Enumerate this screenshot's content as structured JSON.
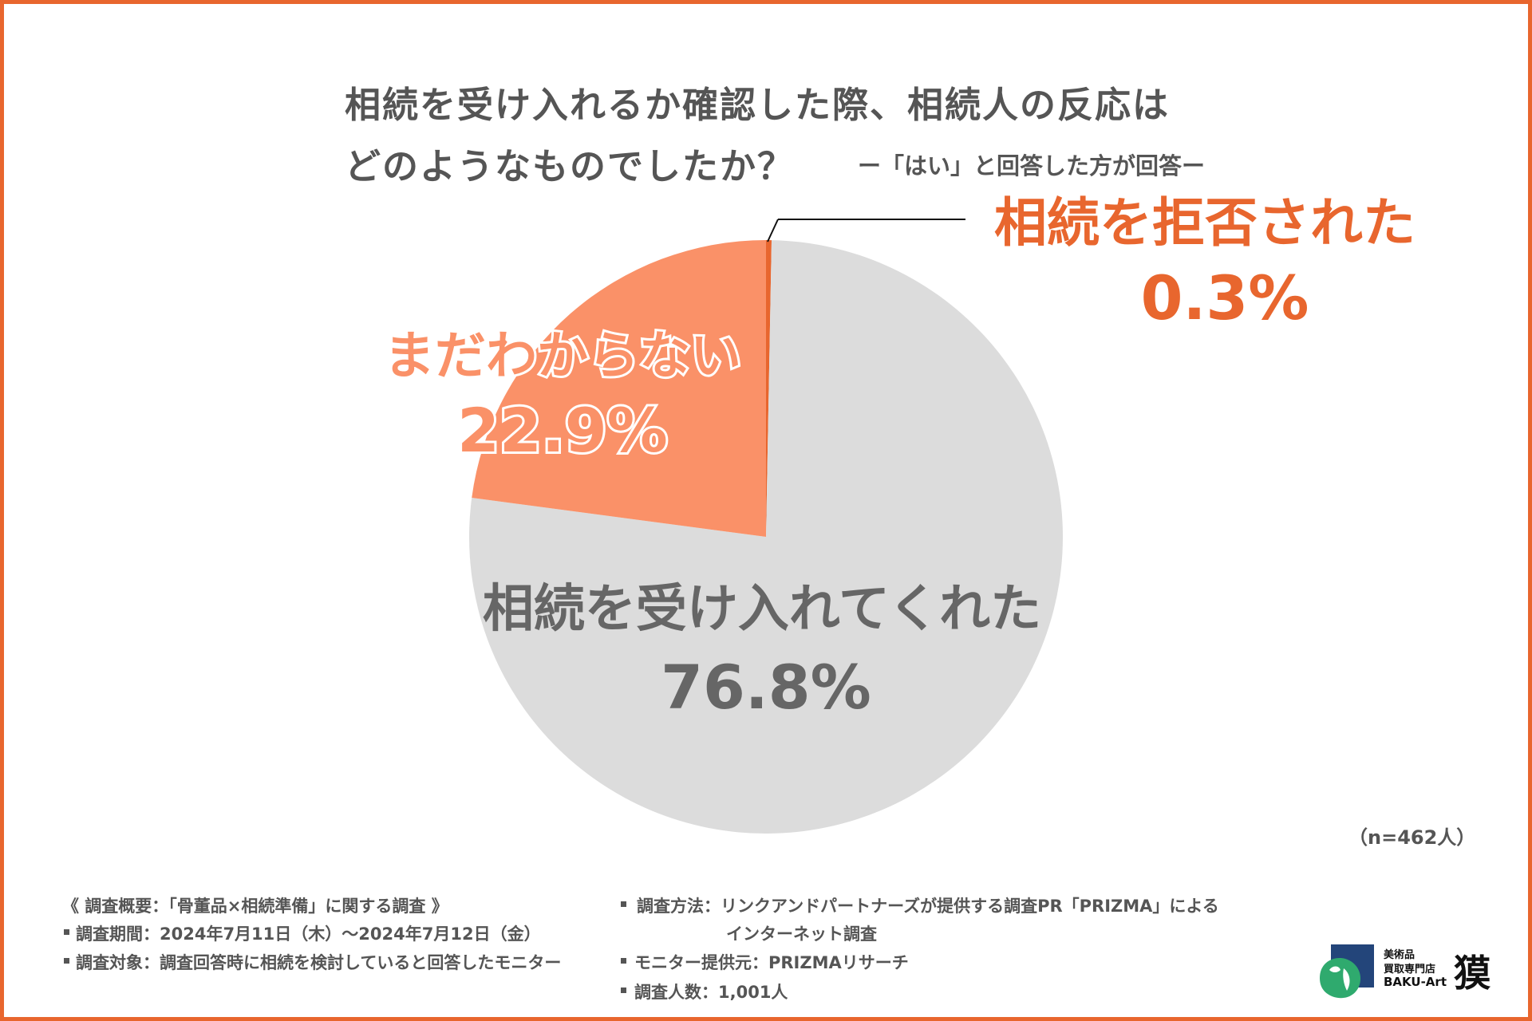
{
  "title": {
    "line1": "相続を受け入れるか確認した際、相続人の反応は",
    "line2": "どのようなものでしたか？",
    "subtitle": "ー「はい」と回答した方が回答ー"
  },
  "colors": {
    "border": "#e8662e",
    "accepted": "#dcdcdc",
    "undecided": "#fa9168",
    "refused": "#e8662e",
    "text": "#555555"
  },
  "chart_data": {
    "type": "pie",
    "title": "相続を受け入れるか確認した際、相続人の反応はどのようなものでしたか？",
    "start_angle_deg": 0,
    "direction": "clockwise",
    "slices": [
      {
        "label": "相続を拒否された",
        "value": 0.3,
        "value_label": "0.3%",
        "color": "#e8662e"
      },
      {
        "label": "相続を受け入れてくれた",
        "value": 76.8,
        "value_label": "76.8%",
        "color": "#dcdcdc"
      },
      {
        "label": "まだわからない",
        "value": 22.9,
        "value_label": "22.9%",
        "color": "#fa9168"
      }
    ]
  },
  "sample_note": "（n=462人）",
  "footer": {
    "overview": "《 調査概要：「骨董品×相続準備」に関する調査 》",
    "period": "調査期間：2024年7月11日（木）～2024年7月12日（金）",
    "target": "調査対象：調査回答時に相続を検討していると回答したモニター",
    "method_line1": "調査方法：リンクアンドパートナーズが提供する調査PR「PRIZMA」による",
    "method_line2": "インターネット調査",
    "provider": "モニター提供元：PRIZMAリサーチ",
    "respondents": "調査人数：1,001人"
  },
  "logo": {
    "line1": "美術品",
    "line2": "買取専門店",
    "line3": "BAKU-Art",
    "kanji": "獏"
  }
}
